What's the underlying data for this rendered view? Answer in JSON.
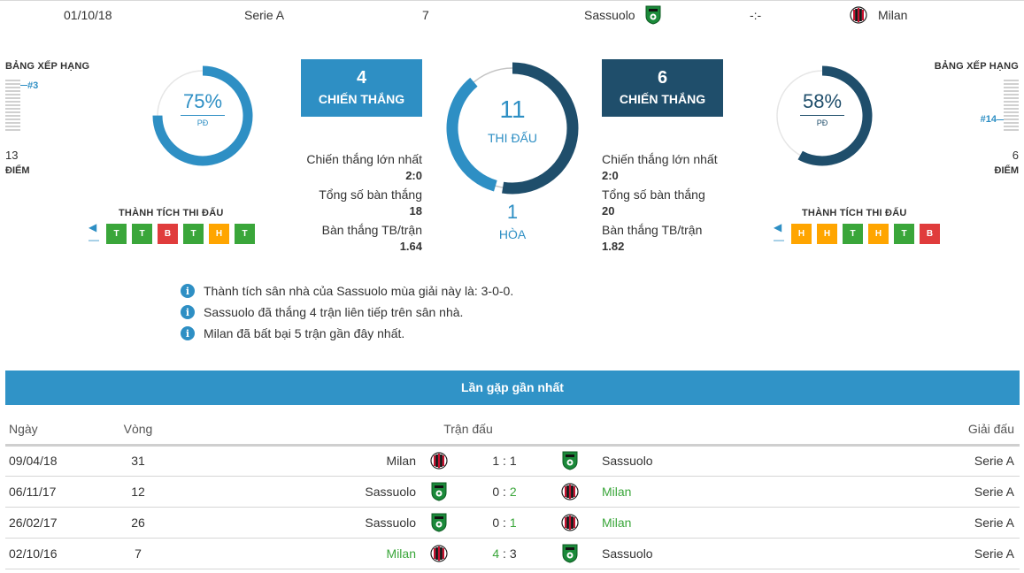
{
  "header": {
    "date": "01/10/18",
    "league": "Serie A",
    "round": "7",
    "home_team": "Sassuolo",
    "score": "-:-",
    "away_team": "Milan"
  },
  "home": {
    "rank_label": "BẢNG XẾP HẠNG",
    "rank": "#3",
    "points": "13",
    "points_label": "ĐIỂM",
    "win_pct": "75%",
    "win_pct_value": 75,
    "pct_label": "PĐ",
    "form_label": "THÀNH TÍCH THI ĐẤU",
    "form": [
      "T",
      "T",
      "B",
      "T",
      "H",
      "T"
    ]
  },
  "away": {
    "rank_label": "BẢNG XẾP HẠNG",
    "rank": "#14",
    "points": "6",
    "points_label": "ĐIỂM",
    "win_pct": "58%",
    "win_pct_value": 58,
    "pct_label": "PĐ",
    "form_label": "THÀNH TÍCH THI ĐẤU",
    "form": [
      "H",
      "H",
      "T",
      "H",
      "T",
      "B"
    ]
  },
  "h2h": {
    "home_wins": "4",
    "home_wins_label": "CHIẾN THẮNG",
    "away_wins": "6",
    "away_wins_label": "CHIẾN THẮNG",
    "matches": "11",
    "matches_label": "THI ĐẤU",
    "draws": "1",
    "draws_label": "HÒA",
    "home_share": 4,
    "away_share": 6,
    "draw_share": 1,
    "home_stats": [
      {
        "label": "Chiến thắng lớn nhất",
        "value": "2:0"
      },
      {
        "label": "Tổng số bàn thắng",
        "value": "18"
      },
      {
        "label": "Bàn thắng TB/trận",
        "value": "1.64"
      }
    ],
    "away_stats": [
      {
        "label": "Chiến thắng lớn nhất",
        "value": "2:0"
      },
      {
        "label": "Tổng số bàn thắng",
        "value": "20"
      },
      {
        "label": "Bàn thắng TB/trận",
        "value": "1.82"
      }
    ]
  },
  "notes": [
    "Thành tích sân nhà của Sassuolo mùa giải này là: 3-0-0.",
    "Sassuolo đã thắng 4 trận liên tiếp trên sân nhà.",
    "Milan đã bất bại 5 trận gần đây nhất."
  ],
  "recent": {
    "title": "Lần gặp gần nhất",
    "columns": {
      "date": "Ngày",
      "round": "Vòng",
      "match": "Trận đấu",
      "competition": "Giải đấu"
    },
    "rows": [
      {
        "date": "09/04/18",
        "round": "31",
        "home": "Milan",
        "home_goals": "1",
        "away_goals": "1",
        "away": "Sassuolo",
        "competition": "Serie A",
        "winner": "draw"
      },
      {
        "date": "06/11/17",
        "round": "12",
        "home": "Sassuolo",
        "home_goals": "0",
        "away_goals": "2",
        "away": "Milan",
        "competition": "Serie A",
        "winner": "away"
      },
      {
        "date": "26/02/17",
        "round": "26",
        "home": "Sassuolo",
        "home_goals": "0",
        "away_goals": "1",
        "away": "Milan",
        "competition": "Serie A",
        "winner": "away"
      },
      {
        "date": "02/10/16",
        "round": "7",
        "home": "Milan",
        "home_goals": "4",
        "away_goals": "3",
        "away": "Sassuolo",
        "competition": "Serie A",
        "winner": "home"
      }
    ]
  },
  "colors": {
    "accent": "#2e8fc4",
    "dark": "#1f4e6b",
    "win": "#3aa63a",
    "draw": "#ffa500",
    "loss": "#e03c3c"
  }
}
